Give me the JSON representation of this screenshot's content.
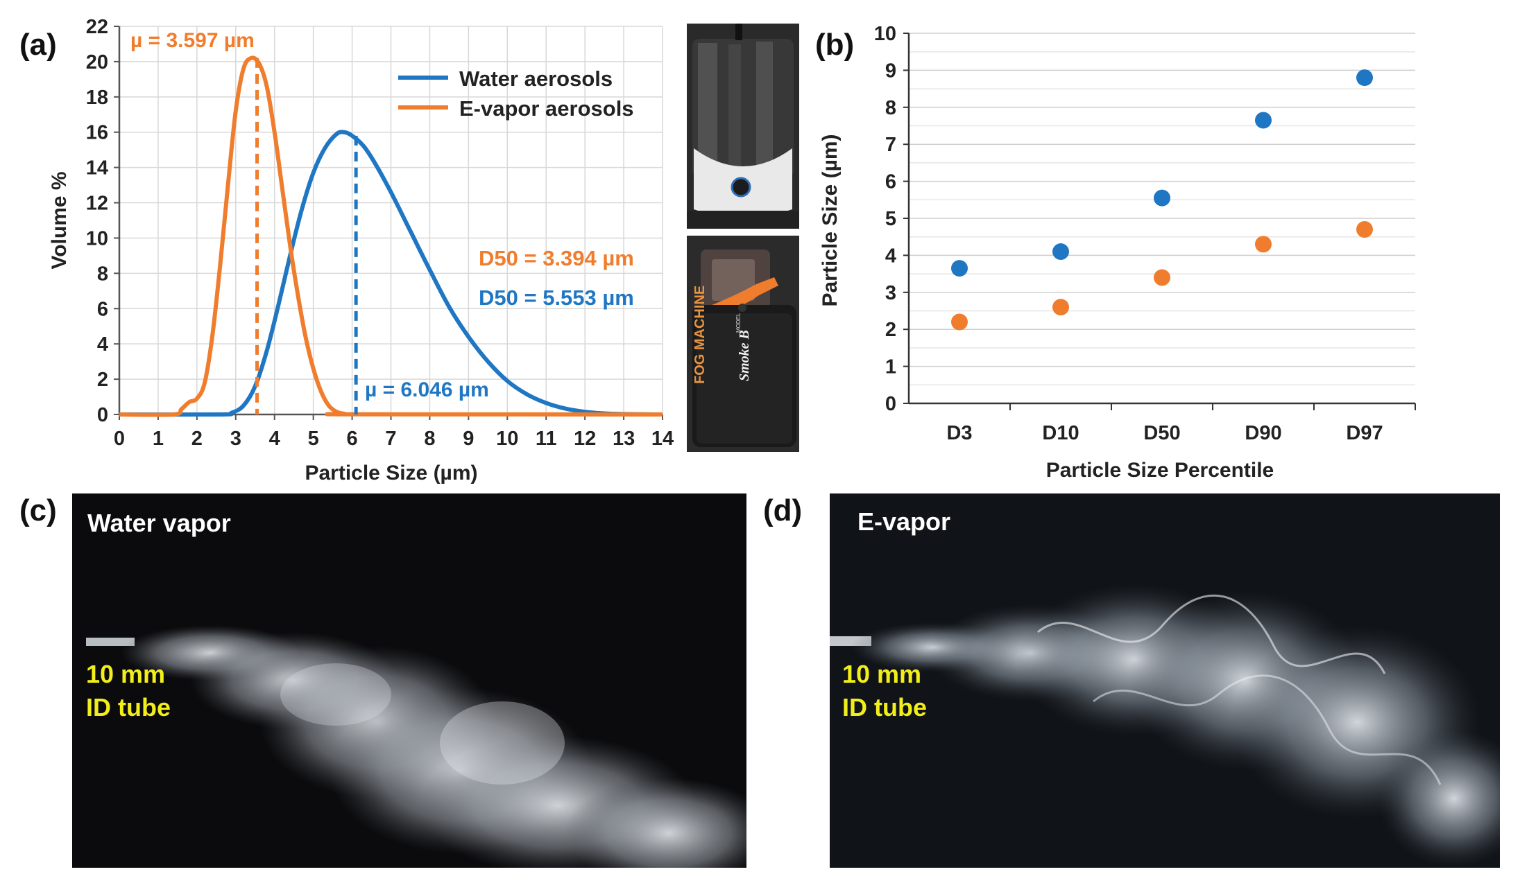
{
  "panels": {
    "a": "(a)",
    "b": "(b)",
    "c": "(c)",
    "d": "(d)"
  },
  "colors": {
    "water": "#1f77c4",
    "evapor": "#f07d2d",
    "photo_bg": "#0c0c0e",
    "caption_yellow": "#f2ee1a"
  },
  "chart_data": [
    {
      "type": "line",
      "xlabel": "Particle Size (µm)",
      "ylabel": "Volume %",
      "xlim": [
        0,
        14
      ],
      "ylim": [
        0,
        22
      ],
      "x_ticks": [
        "0",
        "1",
        "2",
        "3",
        "4",
        "5",
        "6",
        "7",
        "8",
        "9",
        "10",
        "11",
        "12",
        "13",
        "14"
      ],
      "y_ticks": [
        "0",
        "2",
        "4",
        "6",
        "8",
        "10",
        "12",
        "14",
        "16",
        "18",
        "20",
        "22"
      ],
      "grid": true,
      "legend_position": "top-right",
      "series": [
        {
          "name": "Water aerosols",
          "color": "#1f77c4",
          "x": [
            0,
            2.6,
            2.9,
            3.2,
            3.5,
            3.8,
            4.1,
            4.4,
            4.7,
            5.0,
            5.3,
            5.6,
            5.8,
            6.0,
            6.3,
            6.6,
            7.0,
            7.5,
            8.0,
            8.5,
            9.0,
            9.5,
            10.0,
            10.5,
            11.0,
            11.5,
            12.0,
            12.5,
            13.0,
            14.0
          ],
          "y": [
            0,
            0,
            0.1,
            0.5,
            1.6,
            3.6,
            6.2,
            9.0,
            11.6,
            13.7,
            15.1,
            15.9,
            16.0,
            15.8,
            15.2,
            14.2,
            12.6,
            10.4,
            8.2,
            6.1,
            4.4,
            3.0,
            1.9,
            1.15,
            0.65,
            0.33,
            0.15,
            0.06,
            0.02,
            0
          ]
        },
        {
          "name": "E-vapor aerosols",
          "color": "#f07d2d",
          "x": [
            0,
            1.4,
            1.6,
            1.8,
            2.0,
            2.2,
            2.4,
            2.6,
            2.8,
            3.0,
            3.2,
            3.4,
            3.6,
            3.8,
            4.0,
            4.2,
            4.4,
            4.6,
            4.8,
            5.0,
            5.2,
            5.4,
            5.6,
            5.8,
            6.0,
            14.0
          ],
          "y": [
            0,
            0,
            0.3,
            0.7,
            0.9,
            1.8,
            4.5,
            8.5,
            13.0,
            17.2,
            19.6,
            20.2,
            19.9,
            18.6,
            16.0,
            12.8,
            9.6,
            6.8,
            4.4,
            2.6,
            1.3,
            0.5,
            0.15,
            0.04,
            0.01,
            0
          ]
        }
      ],
      "markers": [
        {
          "series": "E-vapor aerosols",
          "x": 3.55,
          "y": 20.2,
          "label": "µ = 3.597 µm"
        },
        {
          "series": "Water aerosols",
          "x": 6.1,
          "y": 15.8,
          "label": "µ = 6.046 µm"
        }
      ],
      "annotations": [
        {
          "text": "D50 = 3.394 µm",
          "color": "#f07d2d"
        },
        {
          "text": "D50 = 5.553 µm",
          "color": "#1f77c4"
        }
      ]
    },
    {
      "type": "scatter",
      "xlabel": "Particle Size Percentile",
      "ylabel": "Particle Size (µm)",
      "categories": [
        "D3",
        "D10",
        "D50",
        "D90",
        "D97"
      ],
      "ylim": [
        0,
        10
      ],
      "y_ticks": [
        "0",
        "1",
        "2",
        "3",
        "4",
        "5",
        "6",
        "7",
        "8",
        "9",
        "10"
      ],
      "grid": true,
      "series": [
        {
          "color": "#1f77c4",
          "values": [
            3.65,
            4.1,
            5.55,
            7.65,
            8.8
          ]
        },
        {
          "color": "#f07d2d",
          "values": [
            2.2,
            2.6,
            3.4,
            4.3,
            4.7
          ]
        }
      ]
    }
  ],
  "photos": {
    "c_caption": "Water vapor",
    "d_caption": "E-vapor",
    "tube_line1": "10 mm",
    "tube_line2": "ID tube",
    "device_brand": "FOG MACHINE",
    "device_model_prefix": "MODEL",
    "device_model": "Smoke B"
  }
}
